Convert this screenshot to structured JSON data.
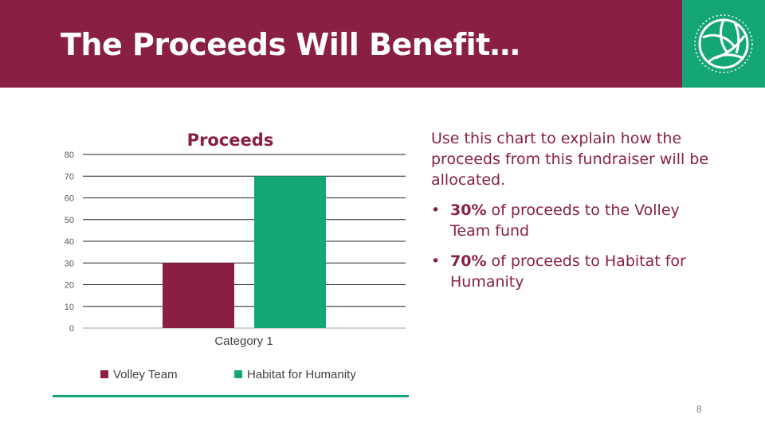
{
  "slide": {
    "title": "The Proceeds Will Benefit…",
    "page_number": "8",
    "logo_icon": "volleyball-icon"
  },
  "text_panel": {
    "intro": "Use this chart to explain how the proceeds from this fundraiser will be allocated.",
    "bullets": [
      {
        "bold": "30%",
        "text": " of proceeds to the Volley Team fund"
      },
      {
        "bold": "70%",
        "text": " of proceeds to Habitat for Humanity"
      }
    ]
  },
  "colors": {
    "maroon": "#8a1f46",
    "green": "#15a678"
  },
  "chart_data": {
    "type": "bar",
    "title": "Proceeds",
    "categories": [
      "Category 1"
    ],
    "series": [
      {
        "name": "Volley Team",
        "values": [
          30
        ],
        "color": "#8a1f46"
      },
      {
        "name": "Habitat for Humanity",
        "values": [
          70
        ],
        "color": "#15a678"
      }
    ],
    "ylim": [
      0,
      80
    ],
    "yticks": [
      0,
      10,
      20,
      30,
      40,
      50,
      60,
      70,
      80
    ],
    "grid": true,
    "legend_position": "bottom",
    "xlabel": "",
    "ylabel": ""
  }
}
